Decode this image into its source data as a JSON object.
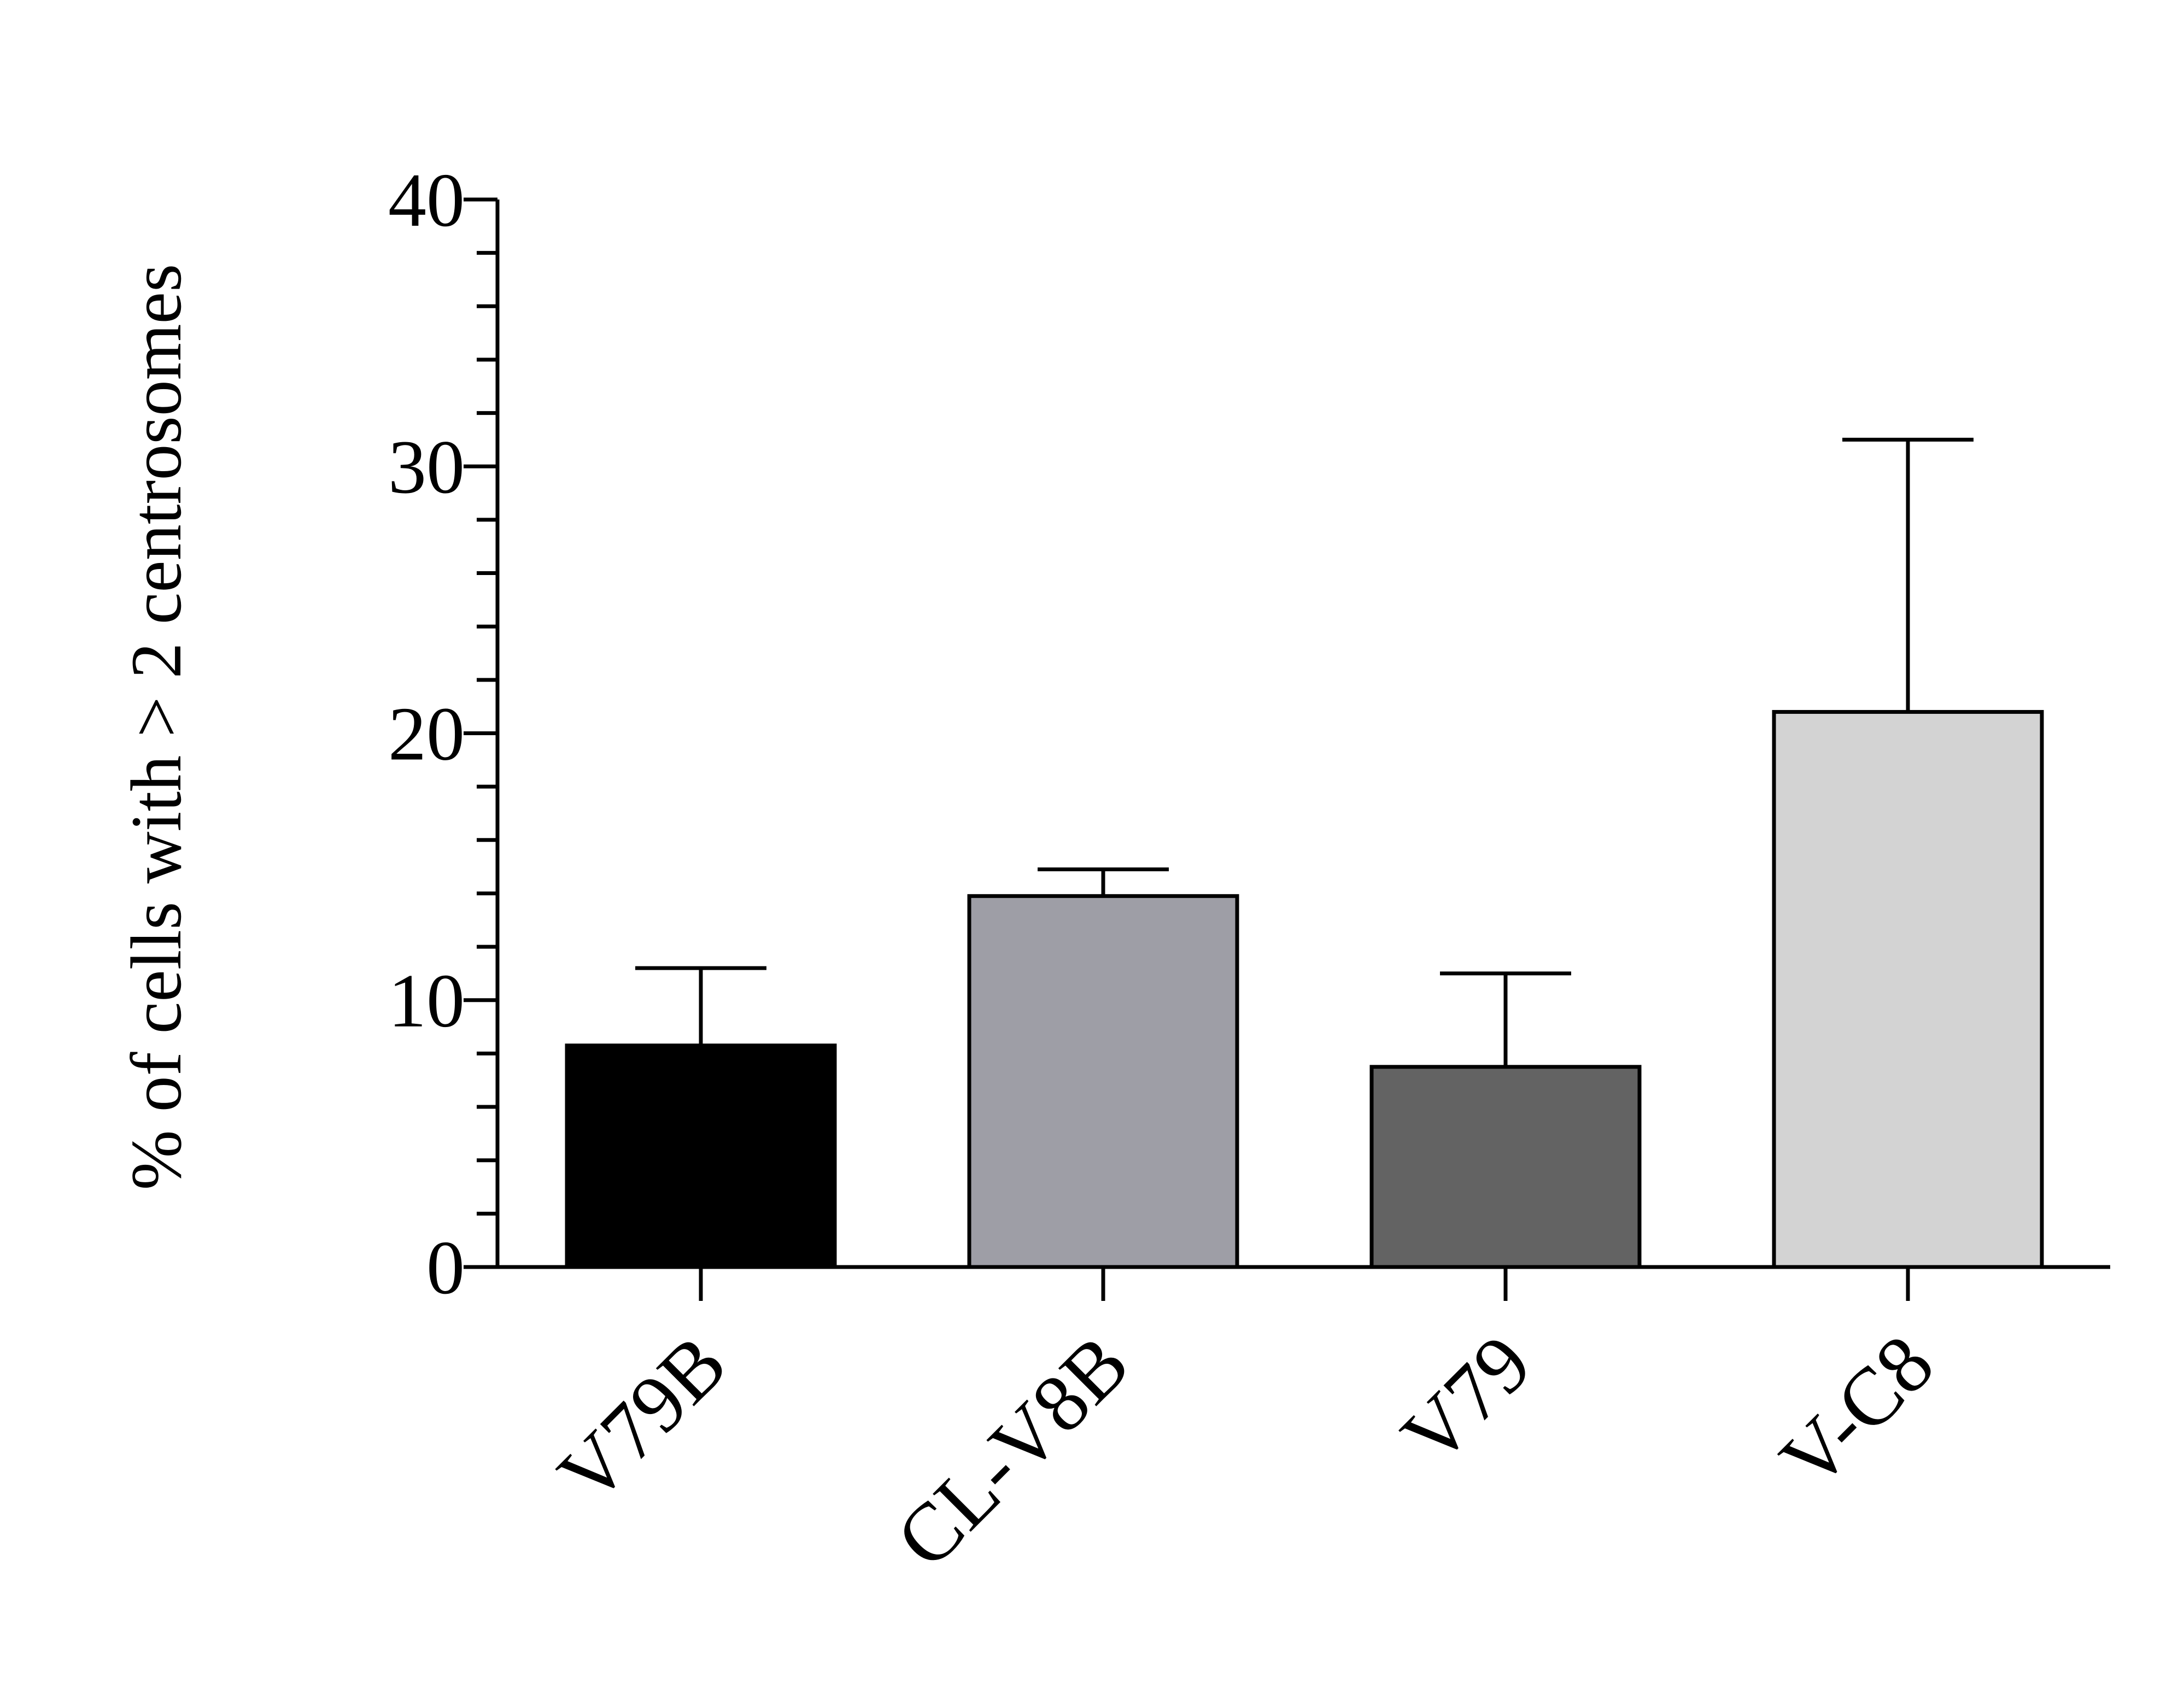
{
  "chart_data": {
    "type": "bar",
    "title": "",
    "xlabel": "",
    "ylabel": "% of cells with > 2 centrosomes",
    "categories": [
      "V79B",
      "CL-V8B",
      "V79",
      "V-C8"
    ],
    "values": [
      8.3,
      13.9,
      7.5,
      20.8
    ],
    "error_upper": [
      11.2,
      14.9,
      11.0,
      31.0
    ],
    "colors": [
      "#000000",
      "#9e9ea6",
      "#636363",
      "#d3d3d3"
    ],
    "ylim": [
      0,
      40
    ],
    "yticks": [
      0,
      10,
      20,
      30,
      40
    ],
    "ytick_labels": [
      "0",
      "10",
      "20",
      "30",
      "40"
    ],
    "y_minor_step": 2,
    "grid": false,
    "legend": "none"
  }
}
